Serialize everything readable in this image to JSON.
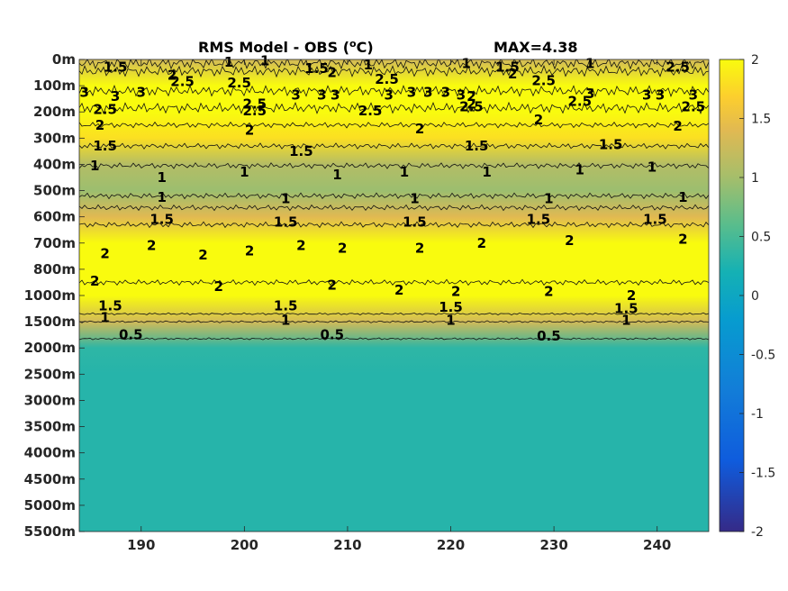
{
  "chart_data": {
    "type": "heatmap",
    "title": "RMS Model - OBS (",
    "title_superscript": "o",
    "title_suffix": "C)",
    "max_label": "MAX=4.38",
    "x_ticks": [
      190,
      200,
      210,
      220,
      230,
      240
    ],
    "x_range": [
      184,
      245
    ],
    "y_tick_labels": [
      "0m",
      "100m",
      "200m",
      "300m",
      "400m",
      "500m",
      "600m",
      "700m",
      "800m",
      "1000m",
      "1500m",
      "2000m",
      "2500m",
      "3000m",
      "3500m",
      "4000m",
      "4500m",
      "5000m",
      "5500m"
    ],
    "colorbar": {
      "range": [
        -2,
        2
      ],
      "ticks": [
        2,
        1.5,
        1,
        0.5,
        0,
        -0.5,
        -1,
        -1.5,
        -2
      ],
      "tick_labels": [
        "2",
        "1.5",
        "1",
        "0.5",
        "0",
        "-0.5",
        "-1",
        "-1.5",
        "-2"
      ],
      "colormap": "parula"
    },
    "depth_profile": [
      {
        "depth": "0m",
        "value": 1.3
      },
      {
        "depth": "100m",
        "value": 2.6
      },
      {
        "depth": "200m",
        "value": 2.4
      },
      {
        "depth": "300m",
        "value": 1.8
      },
      {
        "depth": "400m",
        "value": 1.1
      },
      {
        "depth": "500m",
        "value": 0.95
      },
      {
        "depth": "600m",
        "value": 1.4
      },
      {
        "depth": "700m",
        "value": 2.1
      },
      {
        "depth": "800m",
        "value": 2.3
      },
      {
        "depth": "1000m",
        "value": 2.0
      },
      {
        "depth": "1500m",
        "value": 1.3
      },
      {
        "depth": "2000m",
        "value": 0.35
      },
      {
        "depth": "2500m",
        "value": 0.3
      },
      {
        "depth": "3000m",
        "value": 0.3
      },
      {
        "depth": "3500m",
        "value": 0.3
      },
      {
        "depth": "4000m",
        "value": 0.3
      },
      {
        "depth": "4500m",
        "value": 0.3
      },
      {
        "depth": "5000m",
        "value": 0.3
      },
      {
        "depth": "5500m",
        "value": 0.3
      }
    ],
    "contour_lines": [
      {
        "level": "1.5",
        "depth_index": 0.15
      },
      {
        "level": "2",
        "depth_index": 0.45
      },
      {
        "level": "3",
        "depth_index": 1.2
      },
      {
        "level": "2.5",
        "depth_index": 1.85
      },
      {
        "level": "2",
        "depth_index": 2.5
      },
      {
        "level": "1.5",
        "depth_index": 3.3
      },
      {
        "level": "1",
        "depth_index": 4.05
      },
      {
        "level": "1",
        "depth_index": 5.2
      },
      {
        "level": "1.5",
        "depth_index": 5.65
      },
      {
        "level": "2",
        "depth_index": 6.3
      },
      {
        "level": "2",
        "depth_index": 8.5
      },
      {
        "level": "1.5",
        "depth_index": 9.7
      },
      {
        "level": "1",
        "depth_index": 10.0
      },
      {
        "level": "0.5",
        "depth_index": 10.65
      }
    ],
    "contour_labels": [
      {
        "text": "1.5",
        "x": 187.5,
        "depth_index": 0.3
      },
      {
        "text": "2",
        "x": 193.0,
        "depth_index": 0.6
      },
      {
        "text": "2.5",
        "x": 194.0,
        "depth_index": 0.85
      },
      {
        "text": "1",
        "x": 198.5,
        "depth_index": 0.1
      },
      {
        "text": "1",
        "x": 202.0,
        "depth_index": 0.05
      },
      {
        "text": "1.5",
        "x": 207.0,
        "depth_index": 0.35
      },
      {
        "text": "2",
        "x": 208.5,
        "depth_index": 0.5
      },
      {
        "text": "1",
        "x": 212.0,
        "depth_index": 0.2
      },
      {
        "text": "2.5",
        "x": 213.8,
        "depth_index": 0.75
      },
      {
        "text": "1",
        "x": 221.5,
        "depth_index": 0.15
      },
      {
        "text": "1.5",
        "x": 225.5,
        "depth_index": 0.3
      },
      {
        "text": "2",
        "x": 226.0,
        "depth_index": 0.55
      },
      {
        "text": "2.5",
        "x": 229.0,
        "depth_index": 0.8
      },
      {
        "text": "1",
        "x": 233.5,
        "depth_index": 0.15
      },
      {
        "text": "2.5",
        "x": 242.0,
        "depth_index": 0.3
      },
      {
        "text": "3",
        "x": 184.5,
        "depth_index": 1.25
      },
      {
        "text": "3",
        "x": 187.5,
        "depth_index": 1.4
      },
      {
        "text": "3",
        "x": 190.0,
        "depth_index": 1.25
      },
      {
        "text": "2.5",
        "x": 199.5,
        "depth_index": 0.9
      },
      {
        "text": "3",
        "x": 205.0,
        "depth_index": 1.35
      },
      {
        "text": "3",
        "x": 207.5,
        "depth_index": 1.35
      },
      {
        "text": "3",
        "x": 208.8,
        "depth_index": 1.35
      },
      {
        "text": "3",
        "x": 214.0,
        "depth_index": 1.35
      },
      {
        "text": "3",
        "x": 216.2,
        "depth_index": 1.25
      },
      {
        "text": "3",
        "x": 217.8,
        "depth_index": 1.25
      },
      {
        "text": "3",
        "x": 219.5,
        "depth_index": 1.25
      },
      {
        "text": "3",
        "x": 221.0,
        "depth_index": 1.35
      },
      {
        "text": "2.5",
        "x": 232.5,
        "depth_index": 1.6
      },
      {
        "text": "3",
        "x": 233.5,
        "depth_index": 1.3
      },
      {
        "text": "3",
        "x": 239.0,
        "depth_index": 1.35
      },
      {
        "text": "3",
        "x": 240.3,
        "depth_index": 1.35
      },
      {
        "text": "3",
        "x": 243.5,
        "depth_index": 1.35
      },
      {
        "text": "2.5",
        "x": 186.5,
        "depth_index": 1.9
      },
      {
        "text": "2.5",
        "x": 201.0,
        "depth_index": 1.7
      },
      {
        "text": "2.5",
        "x": 201.0,
        "depth_index": 1.95
      },
      {
        "text": "2.5",
        "x": 212.2,
        "depth_index": 1.95
      },
      {
        "text": "2.5",
        "x": 222.0,
        "depth_index": 1.8
      },
      {
        "text": "2.5",
        "x": 243.5,
        "depth_index": 1.8
      },
      {
        "text": "2",
        "x": 186.0,
        "depth_index": 2.5
      },
      {
        "text": "2",
        "x": 200.5,
        "depth_index": 2.7
      },
      {
        "text": "2",
        "x": 222.0,
        "depth_index": 1.4
      },
      {
        "text": "2",
        "x": 222.0,
        "depth_index": 1.7
      },
      {
        "text": "2",
        "x": 217.0,
        "depth_index": 2.65
      },
      {
        "text": "2",
        "x": 228.5,
        "depth_index": 2.3
      },
      {
        "text": "2",
        "x": 242.0,
        "depth_index": 2.55
      },
      {
        "text": "1.5",
        "x": 186.5,
        "depth_index": 3.3
      },
      {
        "text": "1.5",
        "x": 205.5,
        "depth_index": 3.5
      },
      {
        "text": "1.5",
        "x": 222.5,
        "depth_index": 3.3
      },
      {
        "text": "1.5",
        "x": 235.5,
        "depth_index": 3.25
      },
      {
        "text": "1",
        "x": 185.5,
        "depth_index": 4.05
      },
      {
        "text": "1",
        "x": 192.0,
        "depth_index": 4.5
      },
      {
        "text": "1",
        "x": 200.0,
        "depth_index": 4.3
      },
      {
        "text": "1",
        "x": 209.0,
        "depth_index": 4.4
      },
      {
        "text": "1",
        "x": 215.5,
        "depth_index": 4.3
      },
      {
        "text": "1",
        "x": 223.5,
        "depth_index": 4.3
      },
      {
        "text": "1",
        "x": 232.5,
        "depth_index": 4.2
      },
      {
        "text": "1",
        "x": 239.5,
        "depth_index": 4.1
      },
      {
        "text": "1",
        "x": 192.0,
        "depth_index": 5.25
      },
      {
        "text": "1",
        "x": 204.0,
        "depth_index": 5.3
      },
      {
        "text": "1",
        "x": 216.5,
        "depth_index": 5.3
      },
      {
        "text": "1",
        "x": 229.5,
        "depth_index": 5.3
      },
      {
        "text": "1",
        "x": 242.5,
        "depth_index": 5.25
      },
      {
        "text": "1.5",
        "x": 192.0,
        "depth_index": 6.1
      },
      {
        "text": "1.5",
        "x": 204.0,
        "depth_index": 6.2
      },
      {
        "text": "1.5",
        "x": 216.5,
        "depth_index": 6.2
      },
      {
        "text": "1.5",
        "x": 228.5,
        "depth_index": 6.1
      },
      {
        "text": "1.5",
        "x": 239.8,
        "depth_index": 6.1
      },
      {
        "text": "2",
        "x": 186.5,
        "depth_index": 7.4
      },
      {
        "text": "2",
        "x": 191.0,
        "depth_index": 7.1
      },
      {
        "text": "2",
        "x": 196.0,
        "depth_index": 7.45
      },
      {
        "text": "2",
        "x": 200.5,
        "depth_index": 7.3
      },
      {
        "text": "2",
        "x": 205.5,
        "depth_index": 7.1
      },
      {
        "text": "2",
        "x": 209.5,
        "depth_index": 7.2
      },
      {
        "text": "2",
        "x": 217.0,
        "depth_index": 7.2
      },
      {
        "text": "2",
        "x": 223.0,
        "depth_index": 7.0
      },
      {
        "text": "2",
        "x": 231.5,
        "depth_index": 6.9
      },
      {
        "text": "2",
        "x": 242.5,
        "depth_index": 6.85
      },
      {
        "text": "2",
        "x": 185.5,
        "depth_index": 8.45
      },
      {
        "text": "2",
        "x": 197.5,
        "depth_index": 8.65
      },
      {
        "text": "2",
        "x": 208.5,
        "depth_index": 8.6
      },
      {
        "text": "2",
        "x": 215.0,
        "depth_index": 8.8
      },
      {
        "text": "2",
        "x": 220.5,
        "depth_index": 8.85
      },
      {
        "text": "2",
        "x": 229.5,
        "depth_index": 8.85
      },
      {
        "text": "2",
        "x": 237.5,
        "depth_index": 9.0
      },
      {
        "text": "1.5",
        "x": 187.0,
        "depth_index": 9.4
      },
      {
        "text": "1.5",
        "x": 204.0,
        "depth_index": 9.4
      },
      {
        "text": "1.5",
        "x": 220.0,
        "depth_index": 9.45
      },
      {
        "text": "1.5",
        "x": 237.0,
        "depth_index": 9.5
      },
      {
        "text": "1",
        "x": 186.5,
        "depth_index": 9.85
      },
      {
        "text": "1",
        "x": 204.0,
        "depth_index": 9.95
      },
      {
        "text": "1",
        "x": 220.0,
        "depth_index": 9.95
      },
      {
        "text": "1",
        "x": 237.0,
        "depth_index": 9.95
      },
      {
        "text": "0.5",
        "x": 189.0,
        "depth_index": 10.5
      },
      {
        "text": "0.5",
        "x": 208.5,
        "depth_index": 10.5
      },
      {
        "text": "0.5",
        "x": 229.5,
        "depth_index": 10.55
      }
    ]
  }
}
